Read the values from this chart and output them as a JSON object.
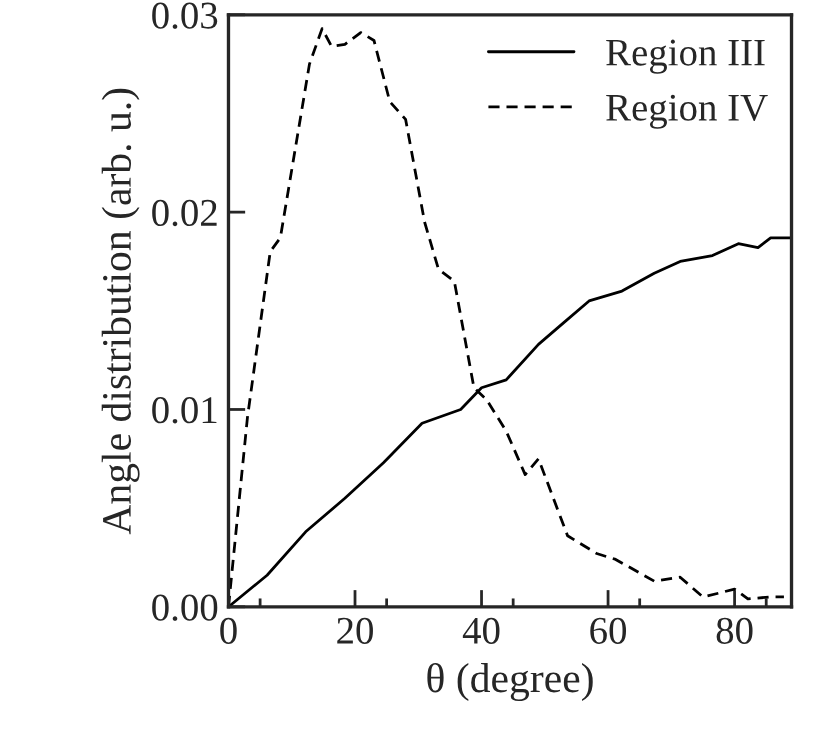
{
  "chart_data": {
    "type": "line",
    "xlabel": "θ (degree)",
    "ylabel": "Angle distribution (arb. u.)",
    "xlim": [
      0,
      89
    ],
    "ylim": [
      0,
      0.03
    ],
    "xticks": [
      0,
      20,
      40,
      60,
      80
    ],
    "yticks": [
      {
        "value": 0,
        "label": "0.00"
      },
      {
        "value": 0.01,
        "label": "0.01"
      },
      {
        "value": 0.02,
        "label": "0.02"
      },
      {
        "value": 0.03,
        "label": "0.03"
      }
    ],
    "grid": false,
    "legend": "top right",
    "marker": "none",
    "series": [
      {
        "name": "Region III",
        "color": "#000000",
        "line_style": "solid",
        "x": [
          0,
          6.1,
          12.2,
          18.4,
          24.5,
          30.6,
          36.7,
          40,
          43.9,
          49,
          53,
          57,
          62.2,
          67.3,
          71.4,
          76.5,
          80.6,
          83.7,
          85.7,
          88.8
        ],
        "values": [
          0,
          0.0016,
          0.0038,
          0.0055,
          0.0073,
          0.0093,
          0.01,
          0.0111,
          0.0115,
          0.0133,
          0.0144,
          0.0155,
          0.016,
          0.0169,
          0.0175,
          0.0178,
          0.0184,
          0.0182,
          0.0187,
          0.0187
        ]
      },
      {
        "name": "Region IV",
        "color": "#000000",
        "line_style": "dashed",
        "x": [
          0,
          3,
          6.6,
          8.2,
          12.8,
          14.8,
          16.3,
          18.4,
          20.9,
          23,
          25.5,
          28,
          31,
          33.2,
          35.7,
          38.8,
          40.8,
          43.9,
          46.9,
          49,
          53.6,
          58.2,
          61.2,
          67.3,
          71.4,
          75,
          77.6,
          80,
          82.1,
          85.7,
          87.8
        ],
        "values": [
          0,
          0.0096,
          0.018,
          0.0187,
          0.0275,
          0.0293,
          0.0284,
          0.0285,
          0.0291,
          0.0287,
          0.0256,
          0.0247,
          0.0195,
          0.0171,
          0.0165,
          0.0111,
          0.0105,
          0.0089,
          0.0067,
          0.0075,
          0.0036,
          0.0027,
          0.0024,
          0.0013,
          0.0015,
          0.0005,
          0.0007,
          0.0009,
          0.0004,
          0.0005,
          0.0005
        ]
      }
    ]
  }
}
